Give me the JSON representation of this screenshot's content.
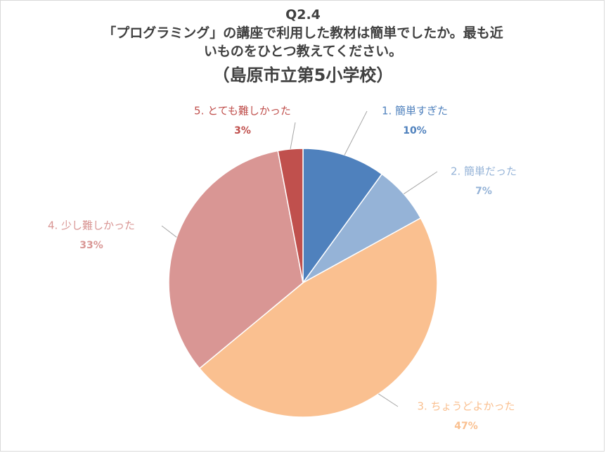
{
  "chart_data": {
    "type": "pie",
    "title_lines": [
      "Q2.4",
      "「プログラミング」の講座で利用した教材は簡単でしたか。最も近",
      "いものをひとつ教えてください。"
    ],
    "subtitle": "（島原市立第5小学校）",
    "start_angle_deg": 0,
    "slices": [
      {
        "label": "1. 簡単すぎた",
        "value": 10,
        "value_label": "10%",
        "color": "#4f81bd",
        "label_color": "#4f81bd"
      },
      {
        "label": "2. 簡単だった",
        "value": 7,
        "value_label": "7%",
        "color": "#95b3d7",
        "label_color": "#95b3d7"
      },
      {
        "label": "3. ちょうどよかった",
        "value": 47,
        "value_label": "47%",
        "color": "#fac090",
        "label_color": "#fac090"
      },
      {
        "label": "4. 少し難しかった",
        "value": 33,
        "value_label": "33%",
        "color": "#d99694",
        "label_color": "#d99694"
      },
      {
        "label": "5. とても難しかった",
        "value": 3,
        "value_label": "3%",
        "color": "#c0504d",
        "label_color": "#c0504d"
      }
    ]
  }
}
